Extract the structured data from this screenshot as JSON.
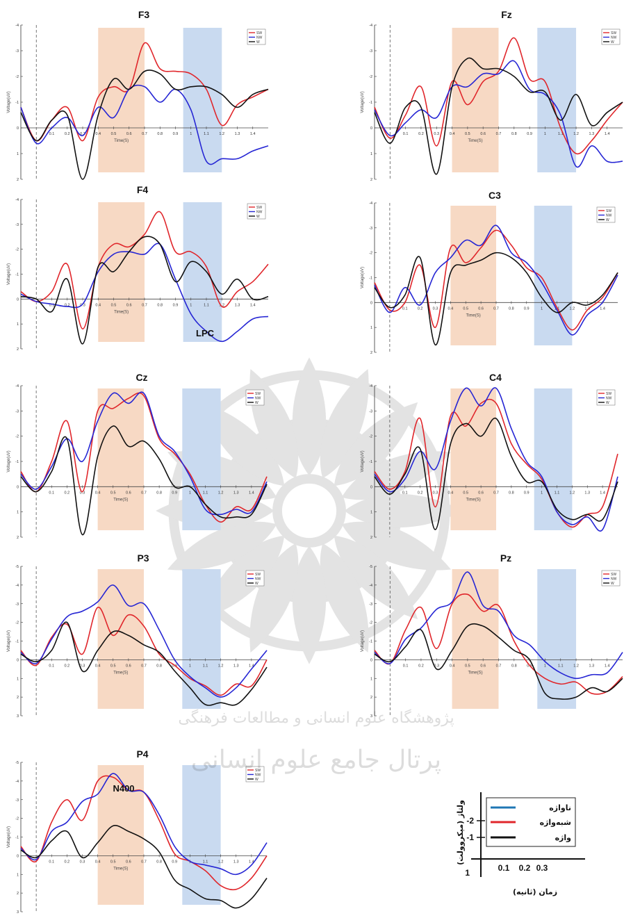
{
  "colors": {
    "sw": "#e0262b",
    "nw": "#2626d4",
    "w": "#111111",
    "n400_window": "#f7d9c4",
    "lpc_window": "#c9daf0",
    "key_blue": "#1f77b4",
    "key_red": "#e0262b",
    "key_black": "#111111"
  },
  "watermark": {
    "text1": "پژوهشگاه علوم انسانی و مطالعات فرهنگی",
    "text2": "پرتال جامع علوم انسانی"
  },
  "key": {
    "items": [
      {
        "label": "ناواژه",
        "color": "#1f77b4"
      },
      {
        "label": "شبه‌واژه",
        "color": "#e0262b"
      },
      {
        "label": "واژه",
        "color": "#111111"
      }
    ],
    "y_axis_label": "ولتاژ (میکروولت)",
    "x_axis_label": "زمان (ثانیه)",
    "y_ticks": [
      "-2",
      "-1",
      "1"
    ],
    "x_ticks": [
      "0.1",
      "0.2",
      "0.3"
    ]
  },
  "chart_data": [
    {
      "type": "line",
      "title": "F3",
      "xlabel": "Time(S)",
      "ylabel": "Voltage(uV)",
      "xlim": [
        -0.1,
        1.5
      ],
      "ylim": [
        2,
        -4
      ],
      "y_ticks": [
        -4,
        -3,
        -2,
        -1,
        0,
        1,
        2
      ],
      "x_ticks": [
        0.1,
        0.2,
        0.3,
        0.4,
        0.5,
        0.6,
        0.7,
        0.8,
        0.9,
        1,
        1.1,
        1.2,
        1.3,
        1.4
      ],
      "windows": [
        [
          0.4,
          0.7
        ],
        [
          0.95,
          1.2
        ]
      ],
      "legend": [
        "SW",
        "NW",
        "W"
      ],
      "x": [
        -0.1,
        0,
        0.1,
        0.2,
        0.3,
        0.4,
        0.5,
        0.6,
        0.7,
        0.8,
        0.9,
        1,
        1.1,
        1.2,
        1.3,
        1.4,
        1.5
      ],
      "series": [
        {
          "name": "SW",
          "values": [
            -0.8,
            0.5,
            -0.3,
            -0.8,
            0.5,
            -1.2,
            -1.6,
            -1.5,
            -3.3,
            -2.3,
            -2.2,
            -2.1,
            -1.5,
            -0.1,
            -0.9,
            -1.2,
            -1.5
          ]
        },
        {
          "name": "NW",
          "values": [
            -0.8,
            0.6,
            0,
            -0.4,
            0.3,
            -0.8,
            -0.4,
            -1.5,
            -1.6,
            -1,
            -1.5,
            -0.7,
            1.3,
            1.2,
            1.2,
            0.9,
            0.7
          ]
        },
        {
          "name": "W",
          "values": [
            -0.6,
            0.5,
            -0.3,
            -0.5,
            2,
            -0.5,
            -1.9,
            -1.5,
            -2.2,
            -2.1,
            -1.5,
            -1.6,
            -1.6,
            -1.3,
            -0.8,
            -1.3,
            -1.5
          ]
        }
      ]
    },
    {
      "type": "line",
      "title": "Fz",
      "xlabel": "Time(S)",
      "ylabel": "Voltage(uV)",
      "xlim": [
        -0.1,
        1.5
      ],
      "ylim": [
        2,
        -4
      ],
      "y_ticks": [
        -4,
        -3,
        -2,
        -1,
        0,
        1,
        2
      ],
      "x_ticks": [
        0.1,
        0.2,
        0.3,
        0.4,
        0.5,
        0.6,
        0.7,
        0.8,
        0.9,
        1,
        1.1,
        1.2,
        1.3,
        1.4
      ],
      "windows": [
        [
          0.4,
          0.7
        ],
        [
          0.95,
          1.2
        ]
      ],
      "legend": [
        "SW",
        "NW",
        "W"
      ],
      "x": [
        -0.1,
        0,
        0.1,
        0.2,
        0.3,
        0.4,
        0.5,
        0.6,
        0.7,
        0.8,
        0.9,
        1,
        1.1,
        1.2,
        1.3,
        1.4,
        1.5
      ],
      "series": [
        {
          "name": "SW",
          "values": [
            -0.8,
            0.4,
            -0.5,
            -1.6,
            0.7,
            -1.8,
            -0.9,
            -1.8,
            -2.2,
            -3.5,
            -1.9,
            -1.8,
            0,
            1,
            0.5,
            -0.3,
            -1
          ]
        },
        {
          "name": "NW",
          "values": [
            -0.7,
            0.3,
            -0.2,
            -0.7,
            -0.4,
            -1.6,
            -1.6,
            -2.1,
            -2.1,
            -2.6,
            -1.5,
            -1.3,
            -0.5,
            1.5,
            0.7,
            1.3,
            1.3
          ]
        },
        {
          "name": "W",
          "values": [
            -0.6,
            0.6,
            -0.8,
            -0.8,
            1.8,
            -1.6,
            -2.7,
            -2.3,
            -2.3,
            -2,
            -1.4,
            -1.4,
            -0.3,
            -1.3,
            -0.1,
            -0.6,
            -1
          ]
        }
      ]
    },
    {
      "type": "line",
      "title": "F4",
      "xlabel": "Time(S)",
      "ylabel": "Voltage(uV)",
      "xlim": [
        -0.1,
        1.5
      ],
      "ylim": [
        2,
        -4
      ],
      "y_ticks": [
        -4,
        -3,
        -2,
        -1,
        0,
        1,
        2
      ],
      "x_ticks": [
        0.1,
        0.2,
        0.3,
        0.4,
        0.5,
        0.6,
        0.7,
        0.8,
        0.9,
        1,
        1.1,
        1.2,
        1.3,
        1.4
      ],
      "windows": [
        [
          0.4,
          0.7
        ],
        [
          0.95,
          1.2
        ]
      ],
      "legend": [
        "SW",
        "NW",
        "W"
      ],
      "x": [
        -0.1,
        0,
        0.1,
        0.2,
        0.3,
        0.4,
        0.5,
        0.6,
        0.7,
        0.8,
        0.9,
        1,
        1.1,
        1.2,
        1.3,
        1.4,
        1.5
      ],
      "series": [
        {
          "name": "SW",
          "values": [
            -0.3,
            0.1,
            -0.3,
            -1.4,
            1.2,
            -1.3,
            -2.2,
            -2.1,
            -2.6,
            -3.5,
            -1.9,
            -1.9,
            -1.3,
            0.3,
            -0.3,
            -0.7,
            -1.4
          ]
        },
        {
          "name": "NW",
          "values": [
            -0.2,
            0.1,
            0.2,
            0.3,
            0.2,
            -1.1,
            -1.8,
            -1.9,
            -1.8,
            -2.2,
            -0.8,
            0.6,
            1.3,
            1.7,
            1.3,
            0.8,
            0.7
          ]
        },
        {
          "name": "W",
          "values": [
            -0.1,
            0,
            0.5,
            -0.8,
            1.8,
            -1.3,
            -1.1,
            -1.9,
            -2.5,
            -2.2,
            -0.7,
            -1.5,
            -1.1,
            -0.2,
            -0.8,
            0,
            -0.1
          ]
        }
      ]
    },
    {
      "type": "line",
      "title": "C3",
      "xlabel": "Time(S)",
      "ylabel": "Voltage(uV)",
      "xlim": [
        -0.1,
        1.5
      ],
      "ylim": [
        2,
        -4
      ],
      "y_ticks": [
        -4,
        -3,
        -2,
        -1,
        0,
        1,
        2
      ],
      "x_ticks": [
        0.1,
        0.2,
        0.3,
        0.4,
        0.5,
        0.6,
        0.7,
        0.8,
        0.9,
        1,
        1.1,
        1.2,
        1.3,
        1.4
      ],
      "windows": [
        [
          0.4,
          0.7
        ],
        [
          0.95,
          1.2
        ]
      ],
      "legend": [
        "SW",
        "NW",
        "W"
      ],
      "x": [
        -0.1,
        0,
        0.1,
        0.2,
        0.3,
        0.4,
        0.5,
        0.6,
        0.7,
        0.8,
        0.9,
        1,
        1.1,
        1.2,
        1.3,
        1.4,
        1.5
      ],
      "series": [
        {
          "name": "SW",
          "values": [
            -0.8,
            0.3,
            0,
            -1.5,
            1,
            -2.2,
            -1.6,
            -2.2,
            -2.9,
            -2.3,
            -1.4,
            -1,
            0.2,
            1.1,
            0.3,
            -0.2,
            -1.2
          ]
        },
        {
          "name": "NW",
          "values": [
            -0.7,
            0.4,
            -0.6,
            0.1,
            -1.2,
            -1.8,
            -2.5,
            -2.3,
            -3.1,
            -2,
            -1.6,
            -0.8,
            0.3,
            1.3,
            0.5,
            0,
            -1.1
          ]
        },
        {
          "name": "W",
          "values": [
            -0.6,
            0.2,
            -0.3,
            -1.8,
            1.7,
            -1.2,
            -1.5,
            -1.7,
            -2,
            -1.8,
            -1.2,
            -0.2,
            0.4,
            0,
            0.1,
            -0.3,
            -1.2
          ]
        }
      ]
    },
    {
      "type": "line",
      "title": "Cz",
      "xlabel": "Time(S)",
      "ylabel": "Voltage(uV)",
      "xlim": [
        -0.1,
        1.5
      ],
      "ylim": [
        2,
        -4
      ],
      "y_ticks": [
        -4,
        -3,
        -2,
        -1,
        0,
        1,
        2
      ],
      "x_ticks": [
        0.1,
        0.2,
        0.3,
        0.4,
        0.5,
        0.6,
        0.7,
        0.8,
        0.9,
        1,
        1.1,
        1.2,
        1.3,
        1.4
      ],
      "windows": [
        [
          0.4,
          0.7
        ],
        [
          0.95,
          1.2
        ]
      ],
      "legend": [
        "SW",
        "NW",
        "W"
      ],
      "x": [
        -0.1,
        0,
        0.1,
        0.2,
        0.3,
        0.4,
        0.5,
        0.6,
        0.7,
        0.8,
        0.9,
        1,
        1.1,
        1.2,
        1.3,
        1.4,
        1.5
      ],
      "series": [
        {
          "name": "SW",
          "values": [
            -0.6,
            0.2,
            -1,
            -2.6,
            0.2,
            -3,
            -3.1,
            -3.5,
            -3.6,
            -1.9,
            -1.3,
            -0.5,
            0.7,
            1.4,
            0.8,
            0.9,
            -0.4
          ]
        },
        {
          "name": "NW",
          "values": [
            -0.5,
            0.1,
            -0.8,
            -1.9,
            -1,
            -2.6,
            -3.7,
            -3.3,
            -3.7,
            -2,
            -1.4,
            -0.4,
            0.9,
            1.1,
            0.9,
            1,
            -0.2
          ]
        },
        {
          "name": "W",
          "values": [
            -0.4,
            0.2,
            -0.6,
            -1.9,
            1.9,
            -1.2,
            -2.4,
            -1.6,
            -1.8,
            -1.1,
            0,
            0,
            0.7,
            1.2,
            1.2,
            1.1,
            -0.1
          ]
        }
      ]
    },
    {
      "type": "line",
      "title": "C4",
      "xlabel": "Time(S)",
      "ylabel": "Voltage(uV)",
      "xlim": [
        -0.1,
        1.5
      ],
      "ylim": [
        2,
        -4
      ],
      "y_ticks": [
        -4,
        -3,
        -2,
        -1,
        0,
        1,
        2
      ],
      "x_ticks": [
        0.1,
        0.2,
        0.3,
        0.4,
        0.5,
        0.6,
        0.7,
        0.8,
        0.9,
        1,
        1.1,
        1.2,
        1.3,
        1.4
      ],
      "windows": [
        [
          0.4,
          0.7
        ],
        [
          0.95,
          1.2
        ]
      ],
      "legend": [
        "SW",
        "NW",
        "W"
      ],
      "x": [
        -0.1,
        0,
        0.1,
        0.2,
        0.3,
        0.4,
        0.5,
        0.6,
        0.7,
        0.8,
        0.9,
        1,
        1.1,
        1.2,
        1.3,
        1.4,
        1.5
      ],
      "series": [
        {
          "name": "SW",
          "values": [
            -0.6,
            0.1,
            -0.6,
            -2.7,
            0.8,
            -2.8,
            -2.4,
            -3.3,
            -3.3,
            -1.7,
            -0.9,
            -0.3,
            1,
            1.6,
            1.1,
            0.8,
            -1.3
          ]
        },
        {
          "name": "NW",
          "values": [
            -0.5,
            0.2,
            -0.3,
            -1.4,
            -0.7,
            -2.6,
            -3.9,
            -3.2,
            -3.9,
            -2.3,
            -1,
            -0.4,
            1,
            1.5,
            1.2,
            1.7,
            -0.4
          ]
        },
        {
          "name": "W",
          "values": [
            -0.4,
            0.3,
            -0.5,
            -1.5,
            1.7,
            -1.7,
            -2.5,
            -2,
            -2.7,
            -1.2,
            -0.2,
            -0.2,
            0.9,
            1.3,
            1.1,
            1.3,
            -0.2
          ]
        }
      ]
    },
    {
      "type": "line",
      "title": "P3",
      "xlabel": "Time(S)",
      "ylabel": "Voltage(uV)",
      "xlim": [
        -0.1,
        1.5
      ],
      "ylim": [
        3,
        -5
      ],
      "y_ticks": [
        -5,
        -4,
        -3,
        -2,
        -1,
        0,
        1,
        2,
        3
      ],
      "x_ticks": [
        0.1,
        0.2,
        0.3,
        0.4,
        0.5,
        0.6,
        0.7,
        0.8,
        0.9,
        1,
        1.1,
        1.2,
        1.3,
        1.4
      ],
      "windows": [
        [
          0.4,
          0.7
        ],
        [
          0.95,
          1.2
        ]
      ],
      "legend": [
        "SW",
        "NW",
        "W"
      ],
      "x": [
        -0.1,
        0,
        0.1,
        0.2,
        0.3,
        0.4,
        0.5,
        0.6,
        0.7,
        0.8,
        0.9,
        1,
        1.1,
        1.2,
        1.3,
        1.4,
        1.5
      ],
      "series": [
        {
          "name": "SW",
          "values": [
            -0.5,
            0.3,
            -1.2,
            -1.9,
            -0.3,
            -2.8,
            -1.3,
            -2.4,
            -1.8,
            -0.3,
            0.3,
            1,
            1.4,
            1.9,
            1.3,
            1.4,
            0
          ]
        },
        {
          "name": "NW",
          "values": [
            -0.4,
            0.2,
            -1.1,
            -2.3,
            -2.6,
            -3.1,
            -4,
            -2.9,
            -3,
            -1.6,
            0,
            0.9,
            1.5,
            2,
            1.5,
            0.5,
            -0.5
          ]
        },
        {
          "name": "W",
          "values": [
            -0.3,
            0.1,
            -0.5,
            -2,
            0.6,
            -0.5,
            -1.5,
            -1.3,
            -0.8,
            -0.4,
            0.6,
            1.5,
            2.4,
            2.3,
            2.4,
            1.6,
            0.4
          ]
        }
      ]
    },
    {
      "type": "line",
      "title": "Pz",
      "xlabel": "Time(S)",
      "ylabel": "Voltage(uV)",
      "xlim": [
        -0.1,
        1.5
      ],
      "ylim": [
        3,
        -5
      ],
      "y_ticks": [
        -5,
        -4,
        -3,
        -2,
        -1,
        0,
        1,
        2,
        3
      ],
      "x_ticks": [
        0.1,
        0.2,
        0.3,
        0.4,
        0.5,
        0.6,
        0.7,
        0.8,
        0.9,
        1,
        1.1,
        1.2,
        1.3,
        1.4
      ],
      "windows": [
        [
          0.4,
          0.7
        ],
        [
          0.95,
          1.2
        ]
      ],
      "legend": [
        "SW",
        "NW",
        "W"
      ],
      "x": [
        -0.1,
        0,
        0.1,
        0.2,
        0.3,
        0.4,
        0.5,
        0.6,
        0.7,
        0.8,
        0.9,
        1,
        1.1,
        1.2,
        1.3,
        1.4,
        1.5
      ],
      "series": [
        {
          "name": "SW",
          "values": [
            -0.5,
            0.2,
            -1.6,
            -2.8,
            -0.6,
            -3,
            -3.5,
            -2.6,
            -2.9,
            -1,
            0.3,
            1,
            1.3,
            1.2,
            1.8,
            1.7,
            0.9
          ]
        },
        {
          "name": "NW",
          "values": [
            -0.4,
            0.2,
            -1.1,
            -1.7,
            -2.7,
            -3.1,
            -4.7,
            -2.9,
            -2.6,
            -1.3,
            -0.8,
            0.1,
            0.7,
            1,
            0.8,
            0.7,
            -0.4
          ]
        },
        {
          "name": "W",
          "values": [
            -0.3,
            0.1,
            -0.7,
            -1.6,
            0.5,
            -0.5,
            -1.8,
            -1.8,
            -1.2,
            -0.5,
            0,
            1.8,
            2.1,
            2,
            1.5,
            1.7,
            1
          ]
        }
      ]
    },
    {
      "type": "line",
      "title": "P4",
      "xlabel": "Time(S)",
      "ylabel": "Voltage(uV)",
      "xlim": [
        -0.1,
        1.5
      ],
      "ylim": [
        3,
        -5
      ],
      "y_ticks": [
        -5,
        -4,
        -3,
        -2,
        -1,
        0,
        1,
        2,
        3
      ],
      "x_ticks": [
        0.1,
        0.2,
        0.3,
        0.4,
        0.5,
        0.6,
        0.7,
        0.8,
        0.9,
        1,
        1.1,
        1.2,
        1.3,
        1.4
      ],
      "windows": [
        [
          0.4,
          0.7
        ],
        [
          0.95,
          1.2
        ]
      ],
      "legend": [
        "SW",
        "NW",
        "W"
      ],
      "x": [
        -0.1,
        0,
        0.1,
        0.2,
        0.3,
        0.4,
        0.5,
        0.6,
        0.7,
        0.8,
        0.9,
        1,
        1.1,
        1.2,
        1.3,
        1.4,
        1.5
      ],
      "series": [
        {
          "name": "SW",
          "values": [
            -0.5,
            0.3,
            -1.8,
            -3,
            -1.9,
            -4,
            -4.2,
            -3.5,
            -3.4,
            -1.9,
            -0.1,
            0.3,
            0.8,
            1.6,
            1.8,
            1.2,
            0
          ]
        },
        {
          "name": "NW",
          "values": [
            -0.4,
            0.2,
            -1.3,
            -1.8,
            -2.9,
            -3.3,
            -4.4,
            -3.5,
            -3.4,
            -2.2,
            -0.5,
            0.3,
            0.5,
            0.7,
            1,
            0.5,
            -0.7
          ]
        },
        {
          "name": "W",
          "values": [
            -0.3,
            0.1,
            -0.8,
            -1.3,
            0.1,
            -0.7,
            -1.6,
            -1.3,
            -0.9,
            -0.2,
            1.3,
            1.8,
            2.3,
            2.4,
            2.8,
            2.3,
            1.2
          ]
        }
      ]
    }
  ],
  "annotations": [
    {
      "text": "LPC",
      "panel": 2
    },
    {
      "text": "N400",
      "panel": 8
    }
  ]
}
